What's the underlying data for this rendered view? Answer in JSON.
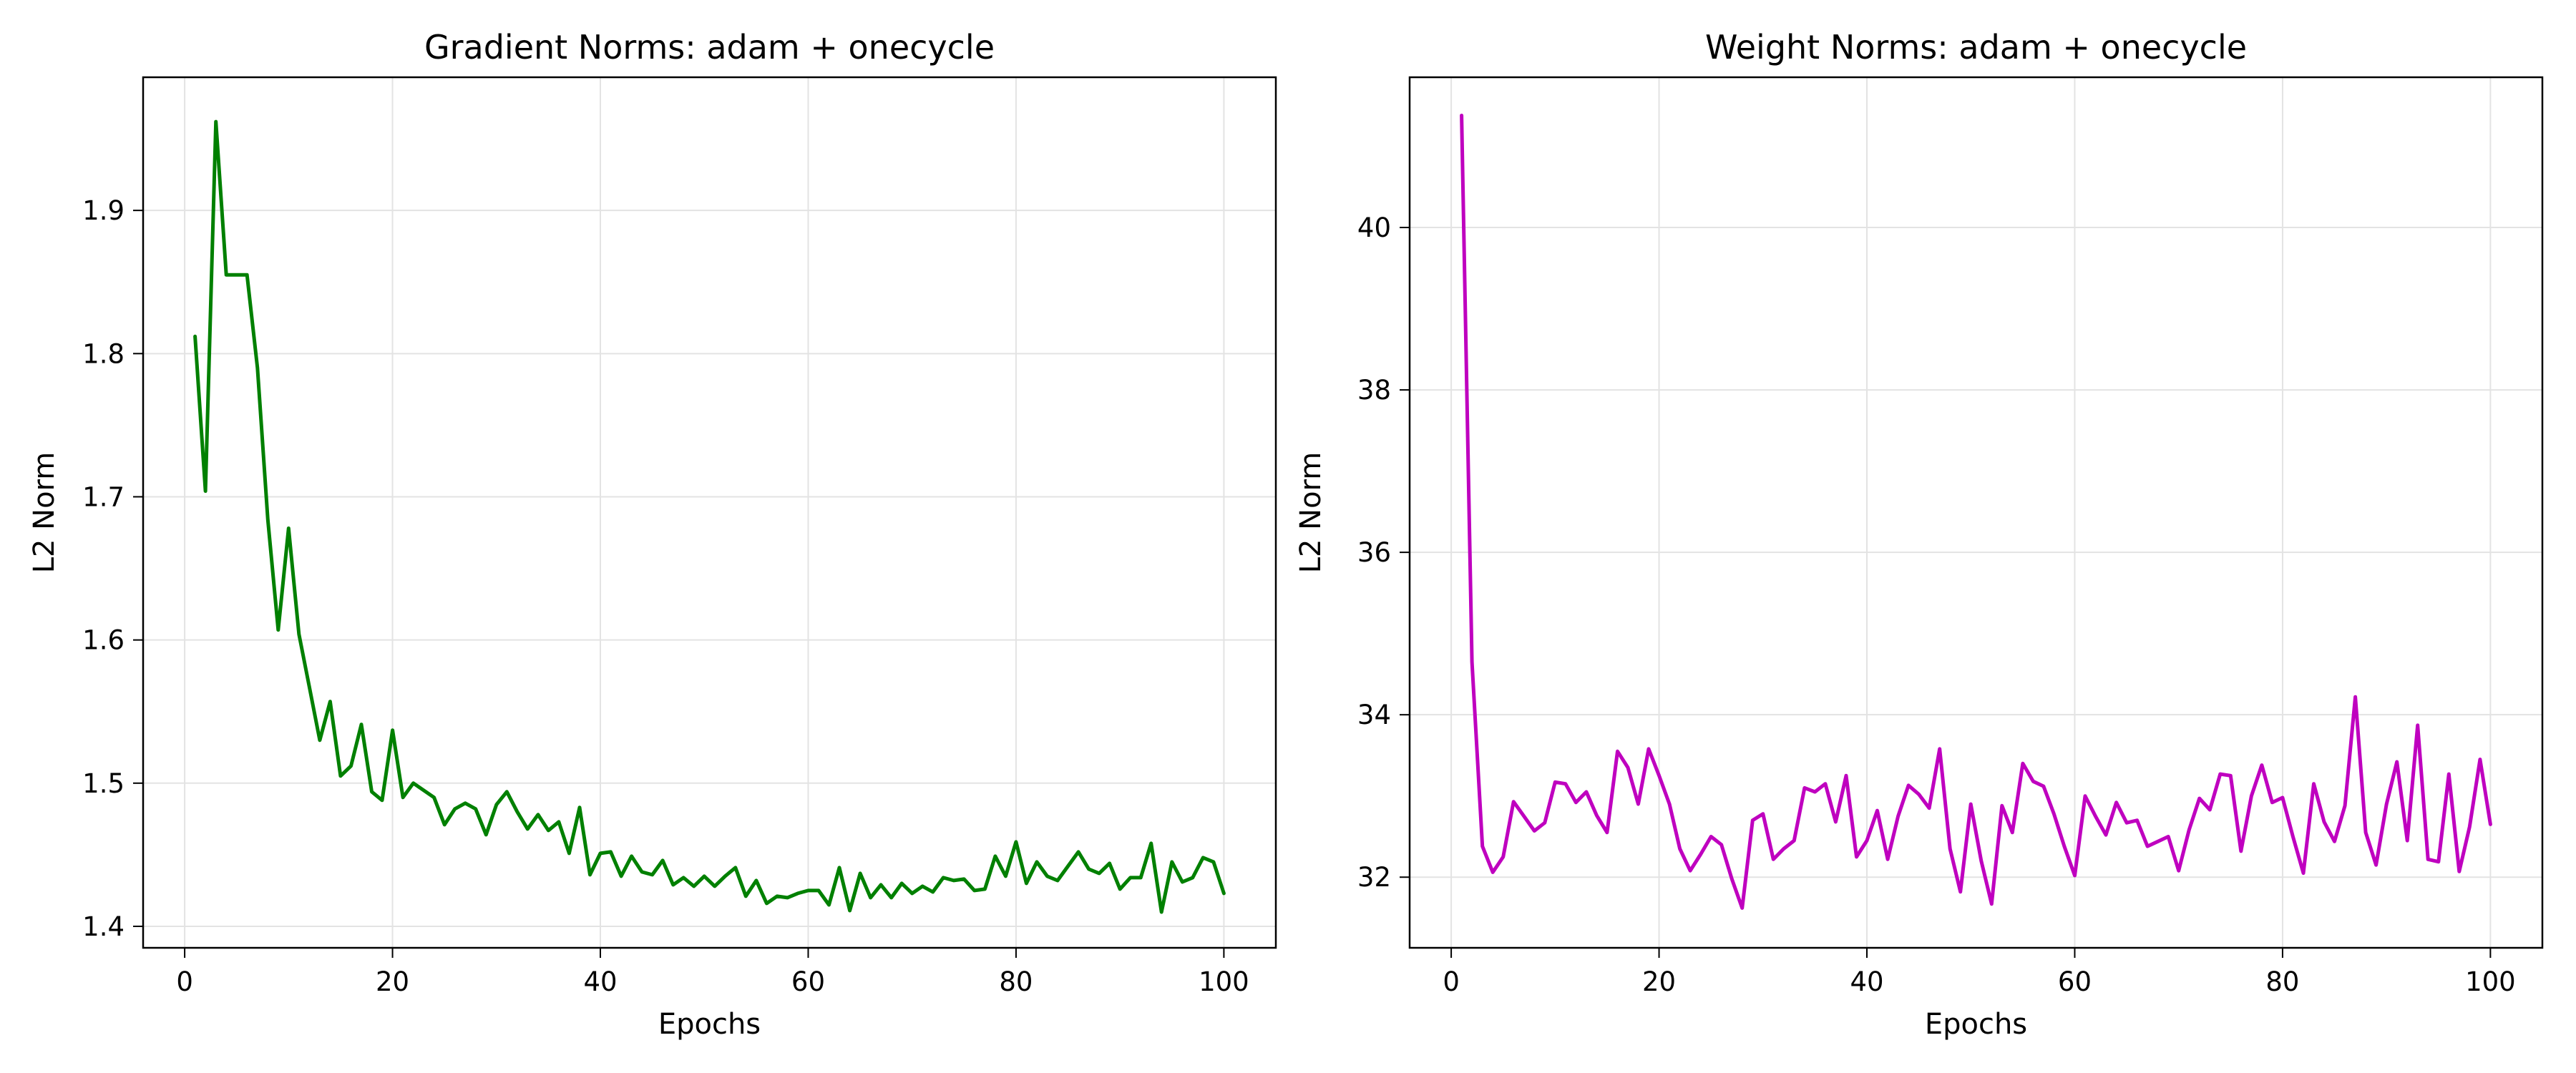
{
  "chart_data": [
    {
      "type": "line",
      "title": "Gradient Norms: adam + onecycle",
      "xlabel": "Epochs",
      "ylabel": "L2 Norm",
      "xlim": [
        -4,
        105
      ],
      "ylim": [
        1.385,
        1.993
      ],
      "xticks": [
        0,
        20,
        40,
        60,
        80,
        100
      ],
      "yticks": [
        1.4,
        1.5,
        1.6,
        1.7,
        1.8,
        1.9
      ],
      "ytick_decimals": 1,
      "grid": true,
      "color": "#008000",
      "x": [
        1,
        2,
        3,
        4,
        5,
        6,
        7,
        8,
        9,
        10,
        11,
        12,
        13,
        14,
        15,
        16,
        17,
        18,
        19,
        20,
        21,
        22,
        23,
        24,
        25,
        26,
        27,
        28,
        29,
        30,
        31,
        32,
        33,
        34,
        35,
        36,
        37,
        38,
        39,
        40,
        41,
        42,
        43,
        44,
        45,
        46,
        47,
        48,
        49,
        50,
        51,
        52,
        53,
        54,
        55,
        56,
        57,
        58,
        59,
        60,
        61,
        62,
        63,
        64,
        65,
        66,
        67,
        68,
        69,
        70,
        71,
        72,
        73,
        74,
        75,
        76,
        77,
        78,
        79,
        80,
        81,
        82,
        83,
        84,
        85,
        86,
        87,
        88,
        89,
        90,
        91,
        92,
        93,
        94,
        95,
        96,
        97,
        98,
        99,
        100
      ],
      "y": [
        1.812,
        1.704,
        1.962,
        1.855,
        1.855,
        1.855,
        1.79,
        1.684,
        1.607,
        1.678,
        1.604,
        1.567,
        1.53,
        1.557,
        1.505,
        1.512,
        1.541,
        1.494,
        1.488,
        1.537,
        1.49,
        1.5,
        1.495,
        1.49,
        1.471,
        1.482,
        1.486,
        1.482,
        1.464,
        1.485,
        1.494,
        1.48,
        1.468,
        1.478,
        1.467,
        1.473,
        1.451,
        1.483,
        1.436,
        1.451,
        1.452,
        1.435,
        1.449,
        1.438,
        1.436,
        1.446,
        1.429,
        1.434,
        1.428,
        1.435,
        1.428,
        1.435,
        1.441,
        1.421,
        1.432,
        1.416,
        1.421,
        1.42,
        1.423,
        1.425,
        1.425,
        1.415,
        1.441,
        1.411,
        1.437,
        1.42,
        1.429,
        1.42,
        1.43,
        1.423,
        1.428,
        1.424,
        1.434,
        1.432,
        1.433,
        1.425,
        1.426,
        1.449,
        1.435,
        1.459,
        1.43,
        1.445,
        1.435,
        1.432,
        1.442,
        1.452,
        1.44,
        1.437,
        1.444,
        1.426,
        1.434,
        1.434,
        1.458,
        1.41,
        1.445,
        1.431,
        1.434,
        1.448,
        1.445,
        1.423
      ]
    },
    {
      "type": "line",
      "title": "Weight Norms: adam + onecycle",
      "xlabel": "Epochs",
      "ylabel": "L2 Norm",
      "xlim": [
        -4,
        105
      ],
      "ylim": [
        31.13,
        41.85
      ],
      "xticks": [
        0,
        20,
        40,
        60,
        80,
        100
      ],
      "yticks": [
        32,
        34,
        36,
        38,
        40
      ],
      "ytick_decimals": 0,
      "grid": true,
      "color": "#bf00bf",
      "x": [
        1,
        2,
        3,
        4,
        5,
        6,
        7,
        8,
        9,
        10,
        11,
        12,
        13,
        14,
        15,
        16,
        17,
        18,
        19,
        20,
        21,
        22,
        23,
        24,
        25,
        26,
        27,
        28,
        29,
        30,
        31,
        32,
        33,
        34,
        35,
        36,
        37,
        38,
        39,
        40,
        41,
        42,
        43,
        44,
        45,
        46,
        47,
        48,
        49,
        50,
        51,
        52,
        53,
        54,
        55,
        56,
        57,
        58,
        59,
        60,
        61,
        62,
        63,
        64,
        65,
        66,
        67,
        68,
        69,
        70,
        71,
        72,
        73,
        74,
        75,
        76,
        77,
        78,
        79,
        80,
        81,
        82,
        83,
        84,
        85,
        86,
        87,
        88,
        89,
        90,
        91,
        92,
        93,
        94,
        95,
        96,
        97,
        98,
        99,
        100
      ],
      "y": [
        41.38,
        34.65,
        32.38,
        32.06,
        32.25,
        32.93,
        32.75,
        32.57,
        32.67,
        33.17,
        33.15,
        32.92,
        33.05,
        32.76,
        32.55,
        33.55,
        33.35,
        32.9,
        33.58,
        33.25,
        32.9,
        32.35,
        32.08,
        32.28,
        32.5,
        32.4,
        31.98,
        31.62,
        32.7,
        32.78,
        32.22,
        32.35,
        32.45,
        33.1,
        33.05,
        33.15,
        32.68,
        33.25,
        32.25,
        32.45,
        32.82,
        32.22,
        32.75,
        33.13,
        33.02,
        32.85,
        33.58,
        32.35,
        31.82,
        32.9,
        32.2,
        31.67,
        32.88,
        32.55,
        33.4,
        33.18,
        33.12,
        32.78,
        32.38,
        32.02,
        33.0,
        32.75,
        32.52,
        32.92,
        32.67,
        32.7,
        32.38,
        32.44,
        32.5,
        32.08,
        32.58,
        32.97,
        32.83,
        33.27,
        33.25,
        32.32,
        33.0,
        33.38,
        32.92,
        32.98,
        32.5,
        32.05,
        33.15,
        32.68,
        32.44,
        32.88,
        34.22,
        32.55,
        32.15,
        32.9,
        33.42,
        32.45,
        33.87,
        32.22,
        32.19,
        33.27,
        32.07,
        32.62,
        33.45,
        32.65
      ]
    }
  ]
}
